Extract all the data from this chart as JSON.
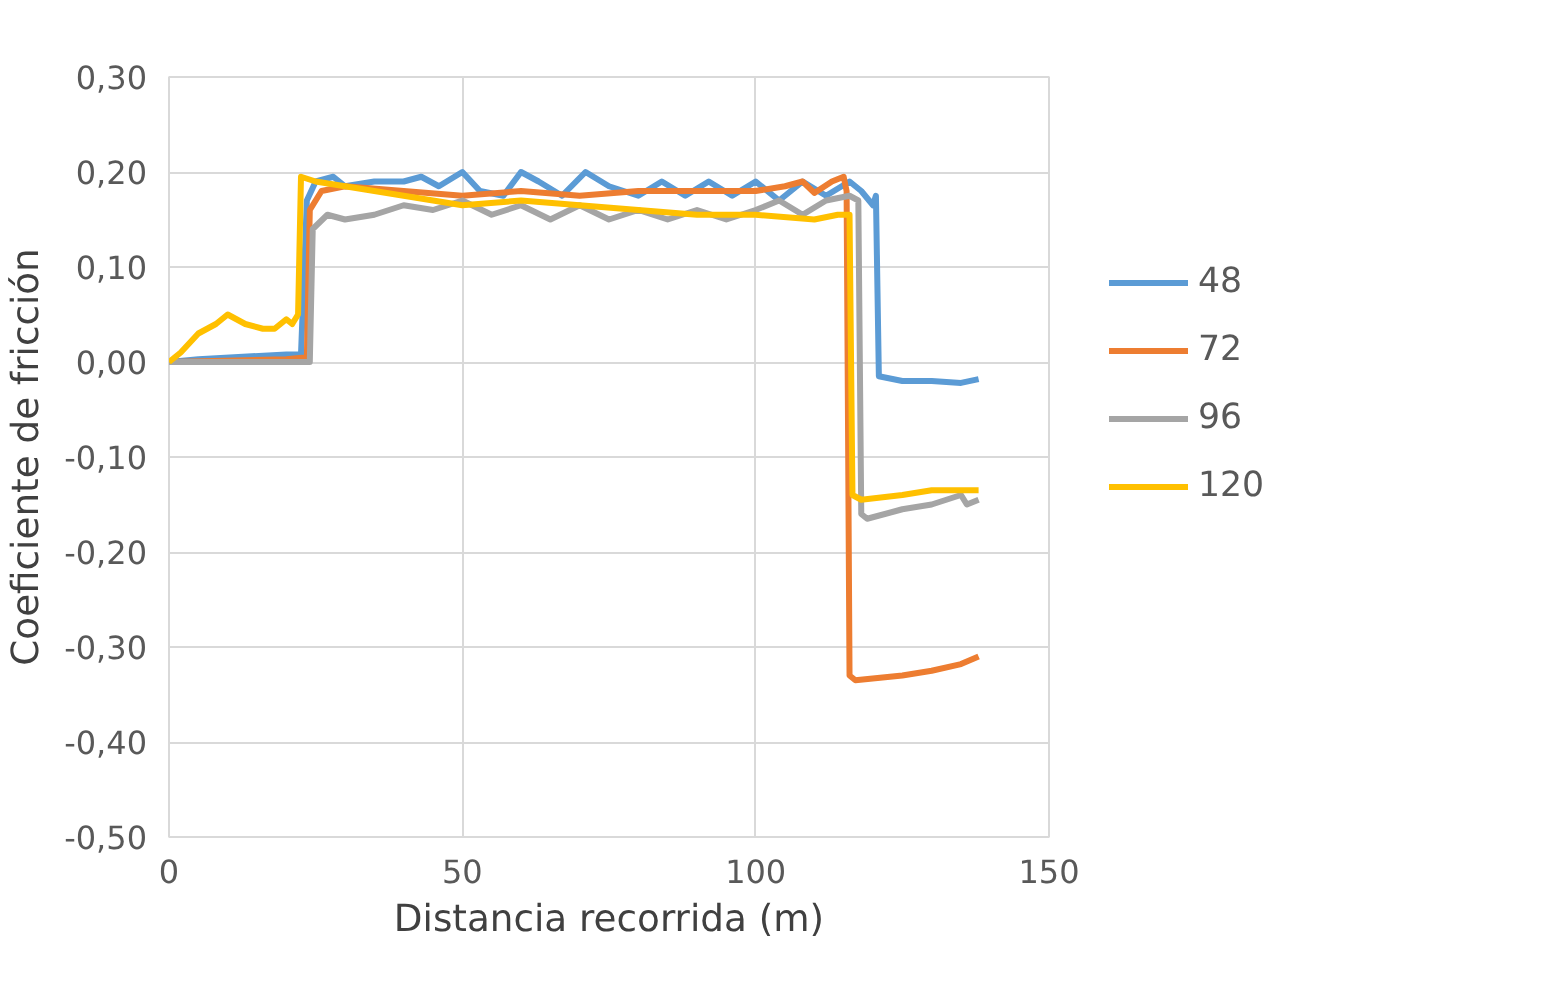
{
  "chart_data": {
    "type": "line",
    "xlabel": "Distancia recorrida (m)",
    "ylabel": "Coeficiente de fricción",
    "xlim": [
      0,
      150
    ],
    "xticks": [
      0,
      50,
      100,
      150
    ],
    "ylim": [
      -0.5,
      0.3
    ],
    "yticks": [
      {
        "value": -0.5,
        "label": "-0,50"
      },
      {
        "value": -0.4,
        "label": "-0,40"
      },
      {
        "value": -0.3,
        "label": "-0,30"
      },
      {
        "value": -0.2,
        "label": "-0,20"
      },
      {
        "value": -0.1,
        "label": "-0,10"
      },
      {
        "value": 0,
        "label": "0,00"
      },
      {
        "value": 0.1,
        "label": "0,10"
      },
      {
        "value": 0.2,
        "label": "0,20"
      },
      {
        "value": 0.3,
        "label": "0,30"
      }
    ],
    "grid": true,
    "legend": "right",
    "marker": "none",
    "line_style": "solid",
    "series": [
      {
        "name": "48",
        "color": "#5b9bd5",
        "x": [
          0,
          5,
          20,
          22.5,
          23.5,
          25,
          28,
          30,
          35,
          40,
          43,
          46,
          50,
          53,
          57,
          60,
          63,
          67,
          71,
          75,
          80,
          84,
          88,
          92,
          96,
          100,
          104,
          108,
          112,
          116,
          118,
          120,
          120.5,
          121,
          125,
          130,
          135,
          138
        ],
        "values": [
          0,
          0.003,
          0.008,
          0.008,
          0.17,
          0.19,
          0.195,
          0.185,
          0.19,
          0.19,
          0.195,
          0.185,
          0.2,
          0.18,
          0.175,
          0.2,
          0.19,
          0.175,
          0.2,
          0.185,
          0.175,
          0.19,
          0.175,
          0.19,
          0.175,
          0.19,
          0.17,
          0.19,
          0.175,
          0.19,
          0.18,
          0.165,
          0.175,
          -0.015,
          -0.02,
          -0.02,
          -0.022,
          -0.018
        ]
      },
      {
        "name": "72",
        "color": "#ed7d31",
        "x": [
          0,
          20,
          23.5,
          24,
          26,
          30,
          40,
          50,
          60,
          70,
          80,
          90,
          100,
          105,
          108,
          110,
          113,
          115,
          115.5,
          116,
          117,
          125,
          130,
          135,
          138
        ],
        "values": [
          0,
          0.003,
          0.005,
          0.16,
          0.18,
          0.185,
          0.18,
          0.175,
          0.18,
          0.175,
          0.18,
          0.18,
          0.18,
          0.185,
          0.19,
          0.178,
          0.19,
          0.195,
          0.18,
          -0.33,
          -0.335,
          -0.33,
          -0.325,
          -0.318,
          -0.31
        ]
      },
      {
        "name": "96",
        "color": "#a5a5a5",
        "x": [
          0,
          24,
          24.5,
          27,
          30,
          35,
          40,
          45,
          50,
          55,
          60,
          65,
          70,
          75,
          80,
          85,
          90,
          95,
          100,
          104,
          108,
          112,
          116,
          117.5,
          118,
          119,
          125,
          130,
          135,
          136,
          138
        ],
        "values": [
          0,
          0,
          0.14,
          0.155,
          0.15,
          0.155,
          0.165,
          0.16,
          0.17,
          0.155,
          0.165,
          0.15,
          0.165,
          0.15,
          0.16,
          0.15,
          0.16,
          0.15,
          0.16,
          0.17,
          0.155,
          0.17,
          0.175,
          0.17,
          -0.16,
          -0.165,
          -0.155,
          -0.15,
          -0.14,
          -0.15,
          -0.145
        ]
      },
      {
        "name": "120",
        "color": "#ffc000",
        "x": [
          0,
          2,
          5,
          8,
          10,
          13,
          16,
          18,
          20,
          21,
          22,
          22.5,
          25,
          30,
          40,
          50,
          60,
          70,
          80,
          90,
          100,
          110,
          114,
          116,
          116.5,
          118,
          125,
          130,
          138
        ],
        "values": [
          0,
          0.01,
          0.03,
          0.04,
          0.05,
          0.04,
          0.035,
          0.035,
          0.045,
          0.04,
          0.05,
          0.195,
          0.19,
          0.185,
          0.175,
          0.165,
          0.17,
          0.165,
          0.16,
          0.155,
          0.155,
          0.15,
          0.155,
          0.155,
          -0.14,
          -0.145,
          -0.14,
          -0.135,
          -0.135
        ]
      }
    ]
  }
}
